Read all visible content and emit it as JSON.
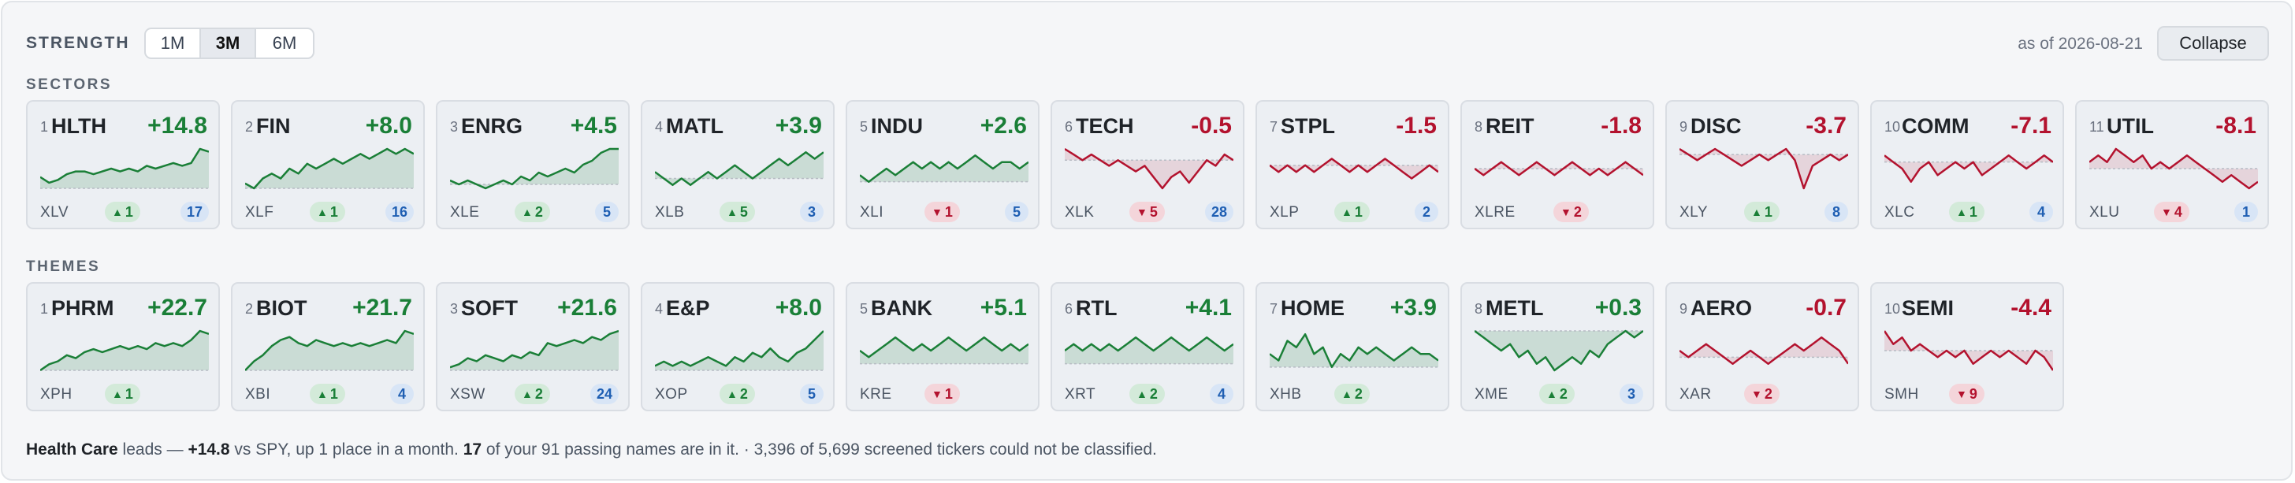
{
  "header": {
    "title": "STRENGTH",
    "periods": [
      "1M",
      "3M",
      "6M"
    ],
    "active_period": "3M",
    "as_of": "as of 2026-08-21",
    "collapse_label": "Collapse"
  },
  "colors": {
    "positive": "#1a7f37",
    "negative": "#b3122e",
    "count": "#1f5fb3"
  },
  "sectors": {
    "label": "SECTORS",
    "cards": [
      {
        "rank": "1",
        "symbol": "HLTH",
        "change": "+14.8",
        "etf": "XLV",
        "move": "1",
        "move_dir": "up",
        "count": "17",
        "series": [
          4,
          2,
          3,
          5,
          6,
          6,
          5,
          6,
          7,
          6,
          7,
          6,
          8,
          7,
          8,
          9,
          8,
          9,
          14,
          13
        ]
      },
      {
        "rank": "2",
        "symbol": "FIN",
        "change": "+8.0",
        "etf": "XLF",
        "move": "1",
        "move_dir": "up",
        "count": "16",
        "series": [
          1,
          0,
          2,
          3,
          2,
          4,
          3,
          5,
          4,
          5,
          6,
          5,
          6,
          7,
          6,
          7,
          8,
          7,
          8,
          7
        ]
      },
      {
        "rank": "3",
        "symbol": "ENRG",
        "change": "+4.5",
        "etf": "XLE",
        "move": "2",
        "move_dir": "up",
        "count": "5",
        "series": [
          1,
          0,
          1,
          0,
          -1,
          0,
          1,
          0,
          2,
          1,
          3,
          2,
          3,
          4,
          3,
          5,
          6,
          8,
          9,
          9
        ]
      },
      {
        "rank": "4",
        "symbol": "MATL",
        "change": "+3.9",
        "etf": "XLB",
        "move": "5",
        "move_dir": "up",
        "count": "3",
        "series": [
          1,
          0,
          -1,
          0,
          -1,
          0,
          1,
          0,
          1,
          2,
          1,
          0,
          1,
          2,
          3,
          2,
          3,
          4,
          3,
          4
        ]
      },
      {
        "rank": "5",
        "symbol": "INDU",
        "change": "+2.6",
        "etf": "XLI",
        "move": "1",
        "move_dir": "down",
        "count": "5",
        "series": [
          1,
          0,
          1,
          2,
          1,
          2,
          3,
          2,
          3,
          2,
          3,
          2,
          3,
          4,
          3,
          2,
          3,
          3,
          2,
          3
        ]
      },
      {
        "rank": "6",
        "symbol": "TECH",
        "change": "-0.5",
        "etf": "XLK",
        "move": "5",
        "move_dir": "down",
        "count": "28",
        "series": [
          2,
          1,
          0,
          1,
          0,
          -1,
          0,
          -1,
          -2,
          -1,
          -3,
          -5,
          -3,
          -2,
          -4,
          -2,
          0,
          -1,
          1,
          0
        ]
      },
      {
        "rank": "7",
        "symbol": "STPL",
        "change": "-1.5",
        "etf": "XLP",
        "move": "1",
        "move_dir": "up",
        "count": "2",
        "series": [
          0,
          -1,
          0,
          -1,
          0,
          -1,
          0,
          1,
          0,
          -1,
          0,
          -1,
          0,
          1,
          0,
          -1,
          -2,
          -1,
          0,
          -1
        ]
      },
      {
        "rank": "8",
        "symbol": "REIT",
        "change": "-1.8",
        "etf": "XLRE",
        "move": "2",
        "move_dir": "down",
        "count": "",
        "series": [
          0,
          -1,
          0,
          1,
          0,
          -1,
          0,
          1,
          0,
          -1,
          0,
          1,
          0,
          -1,
          0,
          -1,
          0,
          1,
          0,
          -1
        ]
      },
      {
        "rank": "9",
        "symbol": "DISC",
        "change": "-3.7",
        "etf": "XLY",
        "move": "1",
        "move_dir": "up",
        "count": "8",
        "series": [
          1,
          0,
          -1,
          0,
          1,
          0,
          -1,
          -2,
          -1,
          0,
          -1,
          0,
          1,
          -1,
          -6,
          -2,
          -1,
          0,
          -1,
          0
        ]
      },
      {
        "rank": "10",
        "symbol": "COMM",
        "change": "-7.1",
        "etf": "XLC",
        "move": "1",
        "move_dir": "up",
        "count": "4",
        "series": [
          1,
          0,
          -1,
          -3,
          -1,
          0,
          -2,
          -1,
          0,
          -1,
          0,
          -2,
          -1,
          0,
          1,
          0,
          -1,
          0,
          1,
          0
        ]
      },
      {
        "rank": "11",
        "symbol": "UTIL",
        "change": "-8.1",
        "etf": "XLU",
        "move": "4",
        "move_dir": "down",
        "count": "1",
        "series": [
          1,
          2,
          1,
          3,
          2,
          1,
          2,
          0,
          1,
          0,
          1,
          2,
          1,
          0,
          -1,
          -2,
          -1,
          -2,
          -3,
          -2
        ]
      }
    ]
  },
  "themes": {
    "label": "THEMES",
    "cards": [
      {
        "rank": "1",
        "symbol": "PHRM",
        "change": "+22.7",
        "etf": "XPH",
        "move": "1",
        "move_dir": "up",
        "count": "",
        "series": [
          0,
          2,
          3,
          5,
          4,
          6,
          7,
          6,
          7,
          8,
          7,
          8,
          7,
          9,
          8,
          9,
          8,
          10,
          13,
          12
        ]
      },
      {
        "rank": "2",
        "symbol": "BIOT",
        "change": "+21.7",
        "etf": "XBI",
        "move": "1",
        "move_dir": "up",
        "count": "4",
        "series": [
          0,
          3,
          5,
          8,
          10,
          11,
          9,
          8,
          10,
          9,
          8,
          9,
          8,
          9,
          8,
          9,
          10,
          9,
          13,
          12
        ]
      },
      {
        "rank": "3",
        "symbol": "SOFT",
        "change": "+21.6",
        "etf": "XSW",
        "move": "2",
        "move_dir": "up",
        "count": "24",
        "series": [
          1,
          2,
          4,
          3,
          5,
          4,
          3,
          5,
          4,
          6,
          5,
          9,
          8,
          9,
          10,
          9,
          11,
          10,
          12,
          13
        ]
      },
      {
        "rank": "4",
        "symbol": "E&P",
        "change": "+8.0",
        "etf": "XOP",
        "move": "2",
        "move_dir": "up",
        "count": "5",
        "series": [
          1,
          2,
          1,
          2,
          1,
          2,
          3,
          2,
          1,
          3,
          2,
          4,
          3,
          5,
          3,
          2,
          4,
          5,
          7,
          9
        ]
      },
      {
        "rank": "5",
        "symbol": "BANK",
        "change": "+5.1",
        "etf": "KRE",
        "move": "1",
        "move_dir": "down",
        "count": "",
        "series": [
          2,
          1,
          2,
          3,
          4,
          3,
          2,
          3,
          2,
          3,
          4,
          3,
          2,
          3,
          4,
          3,
          2,
          3,
          2,
          3
        ]
      },
      {
        "rank": "6",
        "symbol": "RTL",
        "change": "+4.1",
        "etf": "XRT",
        "move": "2",
        "move_dir": "up",
        "count": "4",
        "series": [
          2,
          3,
          2,
          3,
          2,
          3,
          2,
          3,
          4,
          3,
          2,
          3,
          4,
          3,
          2,
          3,
          4,
          3,
          2,
          3
        ]
      },
      {
        "rank": "7",
        "symbol": "HOME",
        "change": "+3.9",
        "etf": "XHB",
        "move": "2",
        "move_dir": "up",
        "count": "",
        "series": [
          2,
          1,
          4,
          3,
          5,
          2,
          3,
          0,
          2,
          1,
          3,
          2,
          3,
          2,
          1,
          2,
          3,
          2,
          2,
          1
        ]
      },
      {
        "rank": "8",
        "symbol": "METL",
        "change": "+0.3",
        "etf": "XME",
        "move": "2",
        "move_dir": "up",
        "count": "3",
        "series": [
          0,
          -1,
          -2,
          -3,
          -2,
          -4,
          -3,
          -5,
          -4,
          -6,
          -5,
          -4,
          -5,
          -3,
          -4,
          -2,
          -1,
          0,
          -1,
          0
        ]
      },
      {
        "rank": "9",
        "symbol": "AERO",
        "change": "-0.7",
        "etf": "XAR",
        "move": "2",
        "move_dir": "down",
        "count": "",
        "series": [
          1,
          0,
          1,
          2,
          1,
          0,
          -1,
          0,
          1,
          0,
          -1,
          0,
          1,
          2,
          1,
          2,
          3,
          2,
          1,
          -1
        ]
      },
      {
        "rank": "10",
        "symbol": "SEMI",
        "change": "-4.4",
        "etf": "SMH",
        "move": "9",
        "move_dir": "down",
        "count": "",
        "series": [
          3,
          1,
          2,
          0,
          1,
          0,
          -1,
          0,
          -1,
          0,
          -2,
          -1,
          0,
          -1,
          0,
          -1,
          -2,
          0,
          -1,
          -3
        ]
      }
    ]
  },
  "footer": {
    "leader": "Health Care",
    "t1": " leads — ",
    "value": "+14.8",
    "t2": " vs SPY, up 1 place in a month. ",
    "count": "17",
    "t3": " of your 91 passing names are in it. · 3,396 of 5,699 screened tickers could not be classified."
  }
}
